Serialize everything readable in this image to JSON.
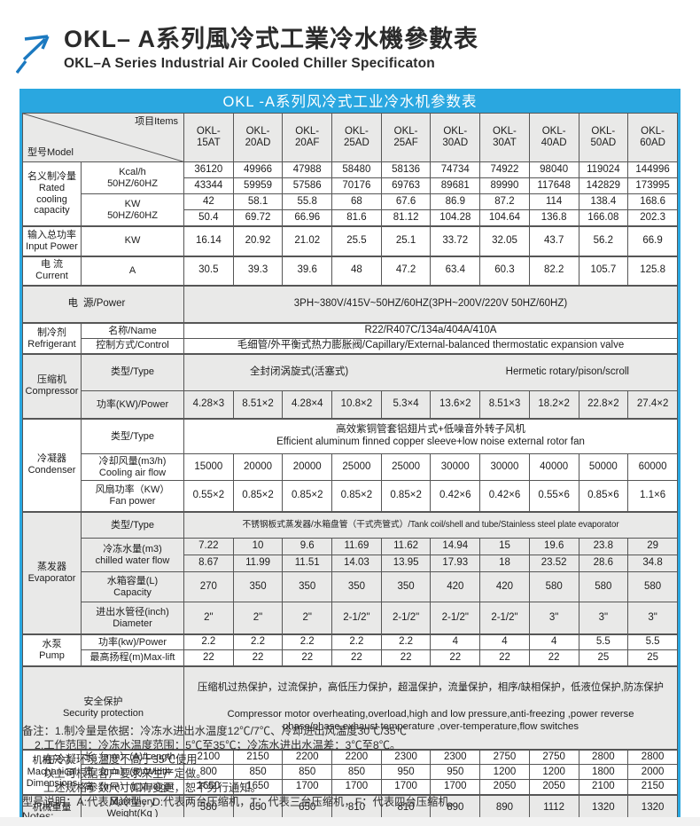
{
  "header": {
    "title_zh": "OKL– A系列風冷式工業冷水機參數表",
    "title_en": "OKL–A Series Industrial Air Cooled Chiller Specificaton"
  },
  "colors": {
    "table_blue": "#2aa7e0",
    "arrow_blue": "#1b79c0",
    "row_gray": "#e9e9e8",
    "border_gray": "#565656"
  },
  "table": {
    "caption": "OKL -A系列风冷式工业冷水机参数表",
    "corner": {
      "model": "型号Model",
      "items": "项目Items"
    },
    "models": [
      "OKL-\n15AT",
      "OKL-\n20AD",
      "OKL-\n20AF",
      "OKL-\n25AD",
      "OKL-\n25AF",
      "OKL-\n30AD",
      "OKL-\n30AT",
      "OKL-\n40AD",
      "OKL-\n50AD",
      "OKL-\n60AD"
    ],
    "rated": {
      "label": "名义制冷量\nRated\ncooling\ncapacity",
      "kcal_label": "Kcal/h\n50HZ/60HZ",
      "kcal_50": [
        "36120",
        "49966",
        "47988",
        "58480",
        "58136",
        "74734",
        "74922",
        "98040",
        "119024",
        "144996"
      ],
      "kcal_60": [
        "43344",
        "59959",
        "57586",
        "70176",
        "69763",
        "89681",
        "89990",
        "117648",
        "142829",
        "173995"
      ],
      "kw_label": "KW\n50HZ/60HZ",
      "kw_50": [
        "42",
        "58.1",
        "55.8",
        "68",
        "67.6",
        "86.9",
        "87.2",
        "114",
        "138.4",
        "168.6"
      ],
      "kw_60": [
        "50.4",
        "69.72",
        "66.96",
        "81.6",
        "81.12",
        "104.28",
        "104.64",
        "136.8",
        "166.08",
        "202.3"
      ]
    },
    "input_power": {
      "label": "输入总功率\nInput Power",
      "unit": "KW",
      "values": [
        "16.14",
        "20.92",
        "21.02",
        "25.5",
        "25.1",
        "33.72",
        "32.05",
        "43.7",
        "56.2",
        "66.9"
      ]
    },
    "current": {
      "label": "电 流\nCurrent",
      "unit": "A",
      "values": [
        "30.5",
        "39.3",
        "39.6",
        "48",
        "47.2",
        "63.4",
        "60.3",
        "82.2",
        "105.7",
        "125.8"
      ]
    },
    "power_supply": {
      "label_zh": "电",
      "label_en": "源/Power",
      "value": "3PH~380V/415V~50HZ/60HZ(3PH~200V/220V 50HZ/60HZ)"
    },
    "refrigerant": {
      "label": "制冷剂\nRefrigerant",
      "name_label": "名称/Name",
      "name": "R22/R407C/134a/404A/410A",
      "control_label": "控制方式/Control",
      "control": "毛细管/外平衡式热力膨胀阀/Capillary/External-balanced thermostatic expansion valve"
    },
    "compressor": {
      "label": "压缩机\nCompressor",
      "type_label": "类型/Type",
      "type_zh": "全封闭涡旋式(活塞式)",
      "type_en": "Hermetic rotary/pison/scroll",
      "power_label": "功率(KW)/Power",
      "power": [
        "4.28×3",
        "8.51×2",
        "4.28×4",
        "10.8×2",
        "5.3×4",
        "13.6×2",
        "8.51×3",
        "18.2×2",
        "22.8×2",
        "27.4×2"
      ]
    },
    "condenser": {
      "label": "冷凝器\nCondenser",
      "type_label": "类型/Type",
      "type": "高效紫铜管套铝翅片式+低噪音外转子风机\nEfficient aluminum finned copper sleeve+low noise external rotor fan",
      "airflow_label": "冷却风量(m3/h)\nCooling air flow",
      "airflow": [
        "15000",
        "20000",
        "20000",
        "25000",
        "25000",
        "30000",
        "30000",
        "40000",
        "50000",
        "60000"
      ],
      "fan_label": "风扇功率（KW）\nFan power",
      "fan": [
        "0.55×2",
        "0.85×2",
        "0.85×2",
        "0.85×2",
        "0.85×2",
        "0.42×6",
        "0.42×6",
        "0.55×6",
        "0.85×6",
        "1.1×6"
      ]
    },
    "evaporator": {
      "label": "蒸发器\nEvaporator",
      "type_label": "类型/Type",
      "type": "不锈钢板式蒸发器/水箱盘管（干式壳管式）/Tank coil/shell and tube/Stainless steel plate evaporator",
      "water_label": "冷冻水量(m3)\nchilled water flow",
      "water_50": [
        "7.22",
        "10",
        "9.6",
        "11.69",
        "11.62",
        "14.94",
        "15",
        "19.6",
        "23.8",
        "29"
      ],
      "water_60": [
        "8.67",
        "11.99",
        "11.51",
        "14.03",
        "13.95",
        "17.93",
        "18",
        "23.52",
        "28.6",
        "34.8"
      ],
      "capacity_label": "水箱容量(L)\nCapacity",
      "capacity": [
        "270",
        "350",
        "350",
        "350",
        "350",
        "420",
        "420",
        "580",
        "580",
        "580"
      ],
      "diameter_label": "进出水管径(inch)\nDiameter",
      "diameter": [
        "2\"",
        "2\"",
        "2\"",
        "2-1/2\"",
        "2-1/2\"",
        "2-1/2\"",
        "2-1/2\"",
        "3\"",
        "3\"",
        "3\""
      ]
    },
    "pump": {
      "label": "水泵\nPump",
      "power_label": "功率(kw)/Power",
      "power": [
        "2.2",
        "2.2",
        "2.2",
        "2.2",
        "2.2",
        "4",
        "4",
        "4",
        "5.5",
        "5.5"
      ],
      "lift_label": "最高扬程(m)Max-lift",
      "lift": [
        "22",
        "22",
        "22",
        "22",
        "22",
        "22",
        "22",
        "22",
        "25",
        "25"
      ]
    },
    "safety": {
      "label": "安全保护\nSecurity protection",
      "text_zh": "压缩机过热保护，过流保护，高低压力保护，超温保护，流量保护，相序/缺相保护，低液位保护,防冻保护",
      "text_en": "Compressor motor overheating,overload,high and low pressure,anti-freezing ,power reverse phase/phase,exhaust temperature ,over-temperature,flow switches"
    },
    "dimensions": {
      "label": "机械尺寸\nMachanical\nDimensions",
      "length_label": "长（mm）(A)/Length",
      "length": [
        "2100",
        "2150",
        "2200",
        "2200",
        "2300",
        "2300",
        "2750",
        "2750",
        "2800",
        "2800"
      ],
      "width_label": "宽（mm）(B)/Width",
      "width": [
        "800",
        "850",
        "850",
        "850",
        "950",
        "950",
        "1200",
        "1200",
        "1800",
        "2000"
      ],
      "height_label": "高（mm）(C)/Height",
      "height": [
        "1650",
        "1650",
        "1700",
        "1700",
        "1700",
        "1700",
        "2050",
        "2050",
        "2100",
        "2150"
      ]
    },
    "weight": {
      "label": "机械重量",
      "unit_label": "Machinery\nWeight(Kg )",
      "values": [
        "580",
        "650",
        "650",
        "810",
        "810",
        "890",
        "890",
        "1112",
        "1320",
        "1320"
      ]
    }
  },
  "notes": {
    "lines": [
      {
        "text": "备注：1.制冷量是依据：冷冻水进出水温度12℃/7℃、冷却进出风温度30℃/35℃"
      },
      {
        "text": "2.工作范围：冷冻水温度范围：5℃至35℃；冷冻水进出水温差：3℃至8℃。"
      },
      {
        "text": "在冷凝环境温度不高于35℃使用"
      },
      {
        "text": "以上可根据客户要求来生产定做。"
      },
      {
        "text": "上述规格参数尺寸如有变更，恕不另行通知。"
      },
      {
        "text": "型号说明：A:代表风冷型，D:代表两台压缩机，T：代表三台压缩机，F：代表四台压缩机。"
      },
      {
        "text": "Notes:"
      }
    ]
  }
}
